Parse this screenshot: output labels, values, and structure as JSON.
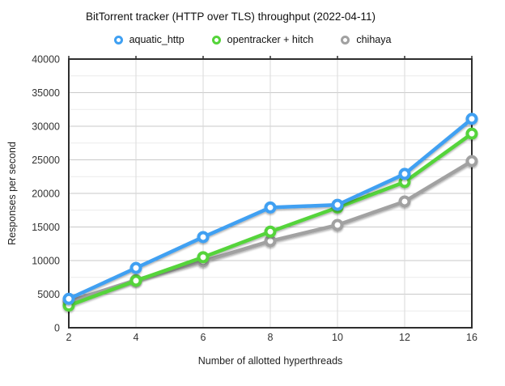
{
  "title": "BitTorrent tracker (HTTP over TLS) throughput (2022-04-11)",
  "chart_data": {
    "type": "line",
    "title": "BitTorrent tracker (HTTP over TLS) throughput (2022-04-11)",
    "categories": [
      2,
      4,
      6,
      8,
      10,
      12,
      16
    ],
    "series": [
      {
        "name": "aquatic_http",
        "color": "#3FA0F2",
        "values": [
          4300,
          8900,
          13500,
          17900,
          18300,
          22900,
          31100
        ]
      },
      {
        "name": "opentracker + hitch",
        "color": "#55D43A",
        "values": [
          3300,
          7000,
          10500,
          14300,
          17900,
          21700,
          28900
        ]
      },
      {
        "name": "chihaya",
        "color": "#A1A1A1",
        "values": [
          3900,
          7100,
          9900,
          12900,
          15300,
          18800,
          24800
        ]
      }
    ],
    "xlabel": "Number of allotted hyperthreads",
    "ylabel": "Responses per second",
    "ylim": [
      0,
      40000
    ],
    "y_ticks": [
      0,
      5000,
      10000,
      15000,
      20000,
      25000,
      30000,
      35000,
      40000
    ],
    "y_major_step": 5000,
    "y_minor_step": 2500,
    "grid": true,
    "legend_position": "top",
    "marker_style": "open-circle",
    "frame_color": "#2E2E2E",
    "major_grid_color": "#C9C9C9",
    "minor_grid_color": "#ECECEC",
    "vertical_grid_color": "#D9D9D9"
  }
}
